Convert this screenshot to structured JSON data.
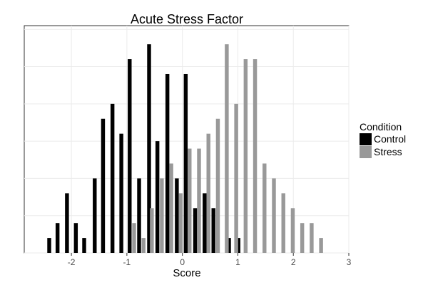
{
  "chart_data": {
    "type": "bar",
    "title": "Acute Stress Factor",
    "xlabel": "Score",
    "ylabel": "",
    "xlim": [
      -2.85,
      3.0
    ],
    "ylim": [
      0,
      6.1
    ],
    "x_ticks": [
      -2,
      -1,
      0,
      1,
      2,
      3
    ],
    "x_tick_labels": [
      "-2",
      "-1",
      "0",
      "1",
      "2",
      "3"
    ],
    "y_ticks": [
      0,
      1,
      2,
      3,
      4,
      5,
      6
    ],
    "y_tick_labels": [],
    "grid": true,
    "bar_width": 0.07,
    "legend": {
      "title": "Condition",
      "placement": "right",
      "entries": [
        "Control",
        "Stress"
      ]
    },
    "series": [
      {
        "name": "Control",
        "color": "#000000",
        "x": [
          -2.4,
          -2.25,
          -2.08,
          -1.92,
          -1.77,
          -1.58,
          -1.43,
          -1.26,
          -1.1,
          -0.95,
          -0.78,
          -0.6,
          -0.45,
          -0.27,
          -0.1,
          0.06,
          0.23,
          0.4,
          0.56,
          0.84,
          1.01
        ],
        "values": [
          0.4,
          0.8,
          1.6,
          0.8,
          0.4,
          2.0,
          3.6,
          4.0,
          3.2,
          5.2,
          2.0,
          5.6,
          3.0,
          4.8,
          2.0,
          4.8,
          1.2,
          1.6,
          1.2,
          0.4,
          0.4
        ]
      },
      {
        "name": "Stress",
        "color": "#999999",
        "x": [
          -0.87,
          -0.7,
          -0.55,
          -0.37,
          -0.2,
          -0.03,
          0.13,
          0.3,
          0.47,
          0.64,
          0.8,
          0.97,
          1.14,
          1.31,
          1.48,
          1.65,
          1.82,
          1.99,
          2.16,
          2.33,
          2.5
        ],
        "values": [
          0.8,
          0.4,
          1.2,
          2.0,
          2.4,
          1.6,
          2.8,
          2.8,
          3.2,
          3.6,
          5.6,
          4.0,
          5.2,
          5.2,
          2.4,
          2.0,
          1.6,
          1.2,
          0.8,
          0.8,
          0.4
        ]
      }
    ]
  }
}
